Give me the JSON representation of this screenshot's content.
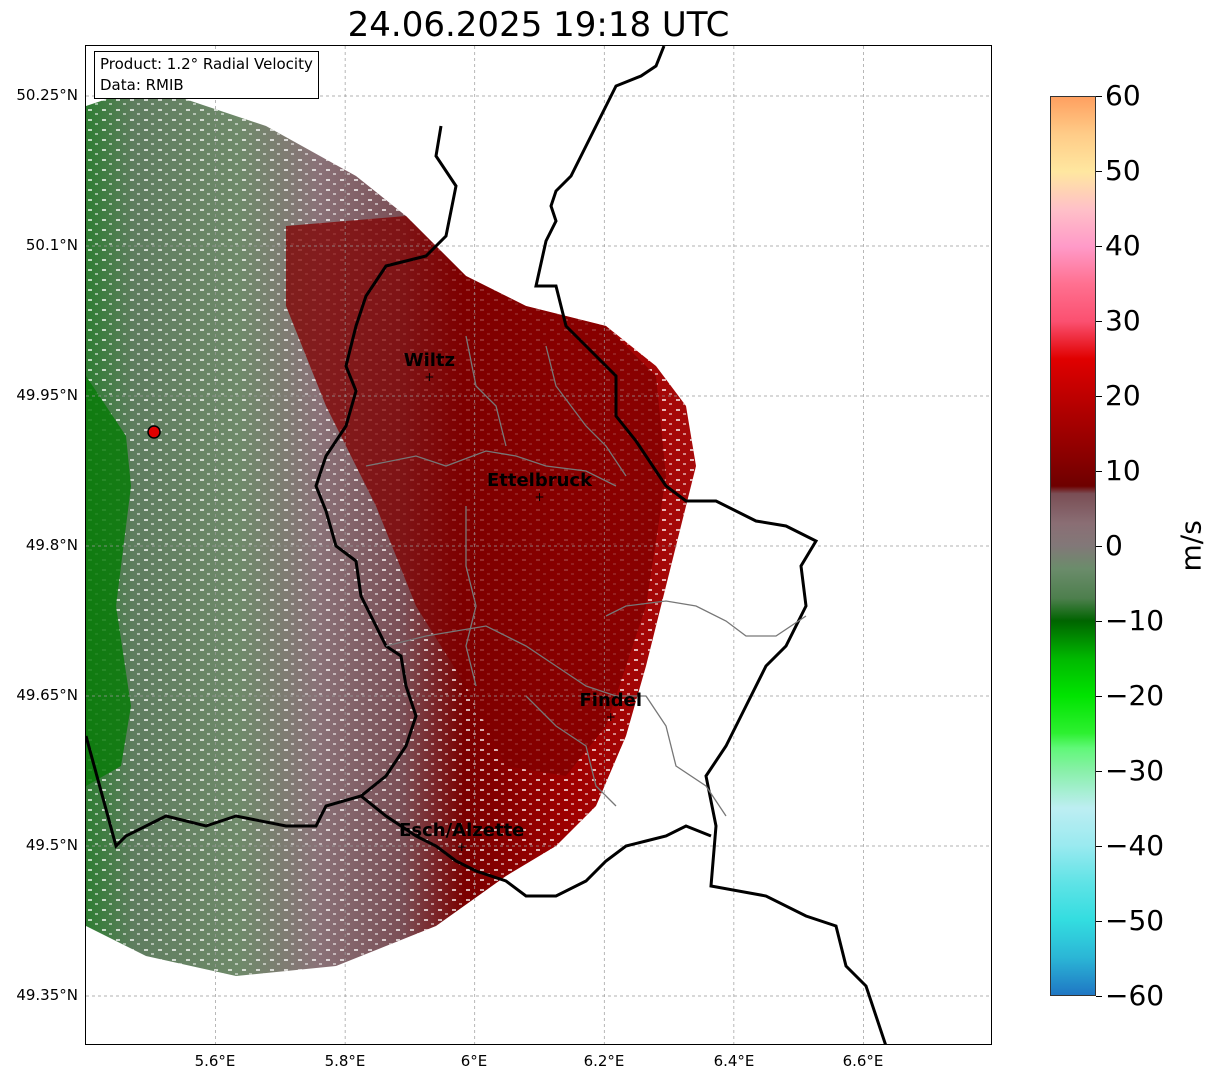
{
  "title": "24.06.2025 19:18 UTC",
  "info_box": {
    "product": "Product: 1.2° Radial Velocity",
    "data": "Data: RMIB"
  },
  "latitude_labels": [
    "50.25°N",
    "50.1°N",
    "49.95°N",
    "49.8°N",
    "49.65°N",
    "49.5°N",
    "49.35°N"
  ],
  "longitude_labels": [
    "5.6°E",
    "5.8°E",
    "6°E",
    "6.2°E",
    "6.4°E",
    "6.6°E"
  ],
  "map": {
    "lon_range": [
      5.4,
      6.8
    ],
    "lat_range": [
      49.3,
      50.3
    ],
    "radar_site": {
      "lon": 5.505,
      "lat": 49.914
    },
    "cities": [
      {
        "name": "Wiltz",
        "lon": 5.93,
        "lat": 49.97
      },
      {
        "name": "Ettelbruck",
        "lon": 6.1,
        "lat": 49.85
      },
      {
        "name": "Findel",
        "lon": 6.21,
        "lat": 49.63
      },
      {
        "name": "Esch/Alzette",
        "lon": 5.98,
        "lat": 49.5
      }
    ]
  },
  "colorbar": {
    "label": "m/s",
    "min": -60,
    "max": 60,
    "ticks": [
      "60",
      "50",
      "40",
      "30",
      "20",
      "10",
      "0",
      "−10",
      "−20",
      "−30",
      "−40",
      "−50",
      "−60"
    ],
    "tick_values": [
      60,
      50,
      40,
      30,
      20,
      10,
      0,
      -10,
      -20,
      -30,
      -40,
      -50,
      -60
    ],
    "colors": {
      "-60": "#1f77c4",
      "-55": "#2bb6d6",
      "-50": "#33dde0",
      "-45": "#5fe3e6",
      "-40": "#9aeaf0",
      "-35": "#bdeef2",
      "-30": "#88f0a8",
      "-27": "#60f878",
      "-25": "#2df030",
      "-20": "#00e400",
      "-15": "#00b800",
      "-10": "#006400",
      "-7": "#4d7f4d",
      "-3": "#6b8c6b",
      "0": "#827878",
      "3": "#8a6e74",
      "7": "#7a4e55",
      "8": "#6e0000",
      "12": "#8a0000",
      "18": "#b00000",
      "25": "#e00000",
      "30": "#fb5070",
      "35": "#ff7090",
      "40": "#ff9ac8",
      "45": "#ffc0c8",
      "50": "#ffe7a0",
      "55": "#ffcc88",
      "60": "#ffa060"
    }
  }
}
